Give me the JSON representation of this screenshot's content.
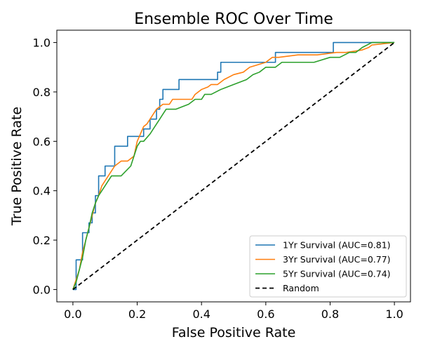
{
  "chart_data": {
    "type": "line",
    "title": "Ensemble ROC Over Time",
    "xlabel": "False Positive Rate",
    "ylabel": "True Positive Rate",
    "xlim": [
      -0.05,
      1.05
    ],
    "ylim": [
      -0.05,
      1.05
    ],
    "xticks": [
      "0.0",
      "0.2",
      "0.4",
      "0.6",
      "0.8",
      "1.0"
    ],
    "yticks": [
      "0.0",
      "0.2",
      "0.4",
      "0.6",
      "0.8",
      "1.0"
    ],
    "grid": false,
    "legend_position": "bottom-right",
    "series": [
      {
        "name": "1Yr Survival (AUC=0.81)",
        "color": "#1f77b4",
        "style": "solid",
        "x": [
          0,
          0.01,
          0.01,
          0.03,
          0.03,
          0.05,
          0.05,
          0.06,
          0.06,
          0.07,
          0.07,
          0.08,
          0.08,
          0.1,
          0.1,
          0.13,
          0.13,
          0.17,
          0.17,
          0.22,
          0.22,
          0.24,
          0.24,
          0.26,
          0.26,
          0.27,
          0.27,
          0.28,
          0.28,
          0.29,
          0.29,
          0.33,
          0.33,
          0.45,
          0.45,
          0.46,
          0.46,
          0.63,
          0.63,
          0.81,
          0.81,
          1.0
        ],
        "y": [
          0,
          0,
          0.12,
          0.12,
          0.23,
          0.23,
          0.27,
          0.27,
          0.31,
          0.31,
          0.38,
          0.38,
          0.46,
          0.46,
          0.5,
          0.5,
          0.58,
          0.58,
          0.62,
          0.62,
          0.65,
          0.65,
          0.69,
          0.69,
          0.73,
          0.73,
          0.77,
          0.77,
          0.81,
          0.81,
          0.81,
          0.81,
          0.85,
          0.85,
          0.88,
          0.88,
          0.92,
          0.92,
          0.96,
          0.96,
          1.0,
          1.0
        ]
      },
      {
        "name": "3Yr Survival (AUC=0.77)",
        "color": "#ff7f0e",
        "style": "solid",
        "x": [
          0,
          0.01,
          0.02,
          0.03,
          0.04,
          0.05,
          0.06,
          0.07,
          0.08,
          0.09,
          0.1,
          0.11,
          0.13,
          0.15,
          0.17,
          0.19,
          0.2,
          0.21,
          0.22,
          0.23,
          0.24,
          0.25,
          0.26,
          0.27,
          0.28,
          0.3,
          0.31,
          0.33,
          0.37,
          0.38,
          0.4,
          0.42,
          0.43,
          0.45,
          0.47,
          0.5,
          0.53,
          0.55,
          0.6,
          0.62,
          0.64,
          0.7,
          0.76,
          0.82,
          0.85,
          0.9,
          0.92,
          0.93,
          1.0
        ],
        "y": [
          0,
          0.04,
          0.08,
          0.15,
          0.2,
          0.25,
          0.3,
          0.35,
          0.38,
          0.42,
          0.44,
          0.46,
          0.5,
          0.52,
          0.52,
          0.54,
          0.6,
          0.63,
          0.66,
          0.67,
          0.69,
          0.71,
          0.73,
          0.74,
          0.75,
          0.75,
          0.77,
          0.77,
          0.77,
          0.79,
          0.81,
          0.82,
          0.83,
          0.83,
          0.85,
          0.87,
          0.88,
          0.9,
          0.92,
          0.94,
          0.94,
          0.95,
          0.95,
          0.96,
          0.96,
          0.97,
          0.98,
          0.99,
          1.0
        ]
      },
      {
        "name": "5Yr Survival (AUC=0.74)",
        "color": "#2ca02c",
        "style": "solid",
        "x": [
          0,
          0.01,
          0.02,
          0.03,
          0.04,
          0.05,
          0.06,
          0.07,
          0.08,
          0.09,
          0.1,
          0.11,
          0.12,
          0.15,
          0.18,
          0.19,
          0.2,
          0.21,
          0.22,
          0.24,
          0.25,
          0.26,
          0.27,
          0.28,
          0.29,
          0.3,
          0.32,
          0.36,
          0.38,
          0.4,
          0.41,
          0.43,
          0.46,
          0.5,
          0.54,
          0.56,
          0.58,
          0.6,
          0.63,
          0.65,
          0.7,
          0.75,
          0.8,
          0.83,
          0.86,
          0.88,
          0.9,
          0.93,
          1.0
        ],
        "y": [
          0,
          0.03,
          0.08,
          0.13,
          0.2,
          0.25,
          0.31,
          0.35,
          0.38,
          0.4,
          0.42,
          0.44,
          0.46,
          0.46,
          0.5,
          0.54,
          0.58,
          0.6,
          0.6,
          0.63,
          0.65,
          0.67,
          0.69,
          0.71,
          0.73,
          0.73,
          0.73,
          0.75,
          0.77,
          0.77,
          0.79,
          0.79,
          0.81,
          0.83,
          0.85,
          0.87,
          0.88,
          0.9,
          0.9,
          0.92,
          0.92,
          0.92,
          0.94,
          0.94,
          0.96,
          0.96,
          0.98,
          1.0,
          1.0
        ]
      },
      {
        "name": "Random",
        "color": "#000000",
        "style": "dashed",
        "x": [
          0,
          1
        ],
        "y": [
          0,
          1
        ]
      }
    ]
  }
}
